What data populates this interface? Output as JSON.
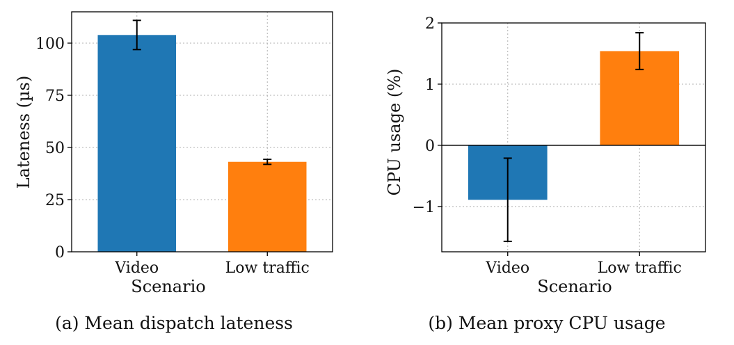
{
  "chart_data": [
    {
      "type": "bar",
      "caption": "(a) Mean dispatch lateness",
      "xlabel": "Scenario",
      "ylabel": "Lateness (µs)",
      "categories": [
        "Video",
        "Low traffic"
      ],
      "values": [
        103.9,
        43.1
      ],
      "error": [
        7.0,
        1.2
      ],
      "colors": [
        "#1f77b4",
        "#ff7f0e"
      ],
      "ylim": [
        0,
        115
      ],
      "yticks": [
        0,
        25,
        50,
        75,
        100
      ],
      "ytick_labels": [
        "0",
        "25",
        "50",
        "75",
        "100"
      ],
      "grid": true
    },
    {
      "type": "bar",
      "caption": "(b) Mean proxy CPU usage",
      "xlabel": "Scenario",
      "ylabel": "CPU usage (%)",
      "categories": [
        "Video",
        "Low traffic"
      ],
      "values": [
        -0.89,
        1.54
      ],
      "error": [
        0.68,
        0.3
      ],
      "colors": [
        "#1f77b4",
        "#ff7f0e"
      ],
      "ylim": [
        -1.74,
        2.0
      ],
      "yticks": [
        -1,
        0,
        1,
        2
      ],
      "ytick_labels": [
        "−1",
        "0",
        "1",
        "2"
      ],
      "grid": true,
      "zero_line": true
    }
  ]
}
